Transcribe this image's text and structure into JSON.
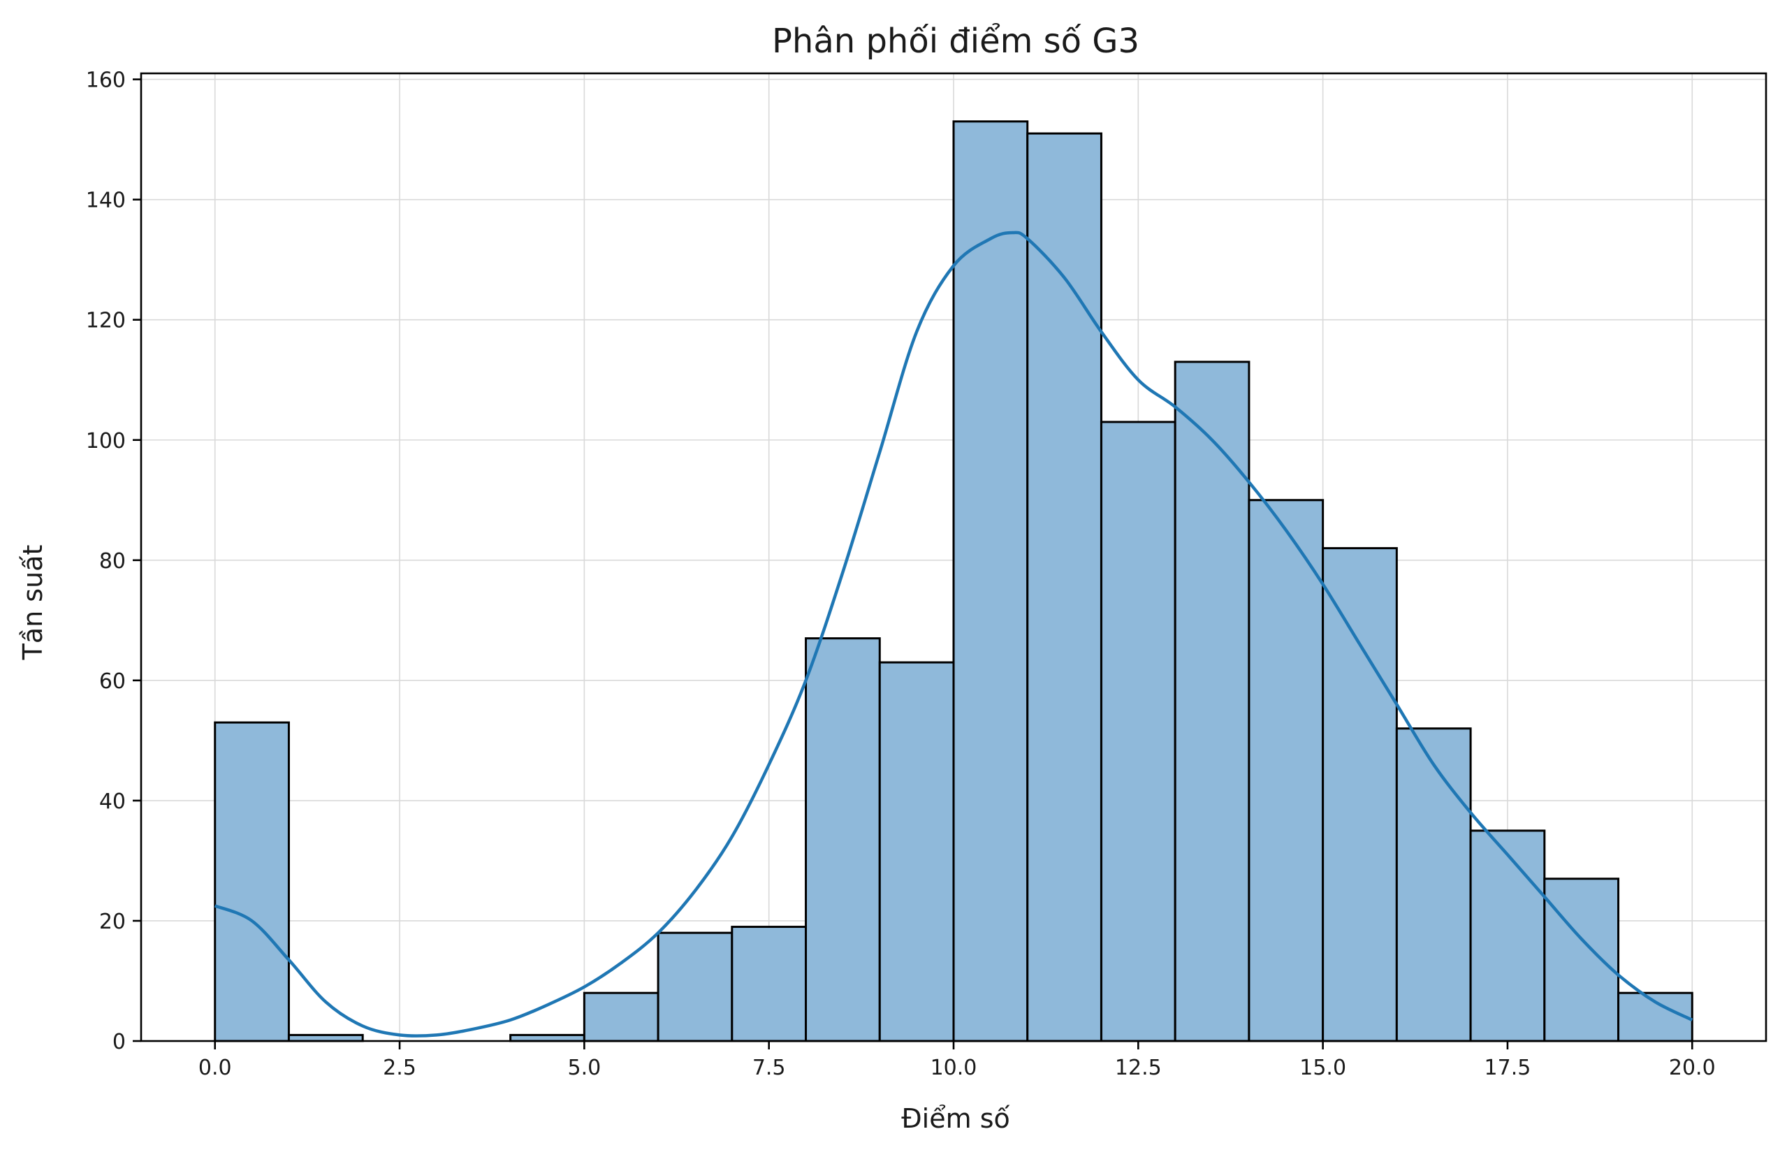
{
  "chart_data": {
    "type": "bar",
    "title": "Phân phối điểm số G3",
    "xlabel": "Điểm số",
    "ylabel": "Tần suất",
    "xlim": [
      -1,
      21.0
    ],
    "ylim": [
      0,
      161
    ],
    "x_ticks": [
      0.0,
      2.5,
      5.0,
      7.5,
      10.0,
      12.5,
      15.0,
      17.5,
      20.0
    ],
    "x_tick_labels": [
      "0.0",
      "2.5",
      "5.0",
      "7.5",
      "10.0",
      "12.5",
      "15.0",
      "17.5",
      "20.0"
    ],
    "y_ticks": [
      0,
      20,
      40,
      60,
      80,
      100,
      120,
      140,
      160
    ],
    "y_tick_labels": [
      "0",
      "20",
      "40",
      "60",
      "80",
      "100",
      "120",
      "140",
      "160"
    ],
    "grid": true,
    "bin_edges": [
      0,
      1,
      2,
      3,
      4,
      5,
      6,
      7,
      8,
      9,
      10,
      11,
      12,
      13,
      14,
      15,
      16,
      17,
      18,
      19,
      20
    ],
    "values": [
      53,
      1,
      0,
      0,
      1,
      8,
      18,
      19,
      67,
      63,
      153,
      151,
      103,
      113,
      90,
      82,
      52,
      35,
      27,
      8
    ],
    "kde": {
      "x": [
        0,
        0.5,
        1,
        1.5,
        2,
        2.5,
        3,
        3.5,
        4,
        4.5,
        5,
        5.5,
        6,
        6.5,
        7,
        7.5,
        8,
        8.5,
        9,
        9.5,
        10,
        10.5,
        10.8,
        11,
        11.5,
        12,
        12.5,
        13,
        13.5,
        14,
        14.5,
        15,
        15.5,
        16,
        16.5,
        17,
        17.5,
        18,
        18.5,
        19,
        19.5,
        20
      ],
      "y": [
        22.5,
        20,
        13.5,
        6.5,
        2.5,
        1.0,
        1.0,
        2.0,
        3.5,
        6,
        9,
        13,
        18,
        25,
        34,
        46,
        60,
        78,
        98,
        118,
        129,
        133.5,
        134.5,
        133.5,
        127,
        118,
        110,
        105.5,
        100,
        93,
        85,
        76,
        66,
        56,
        46,
        38,
        31,
        24,
        17,
        11,
        6.5,
        3.5
      ]
    }
  }
}
